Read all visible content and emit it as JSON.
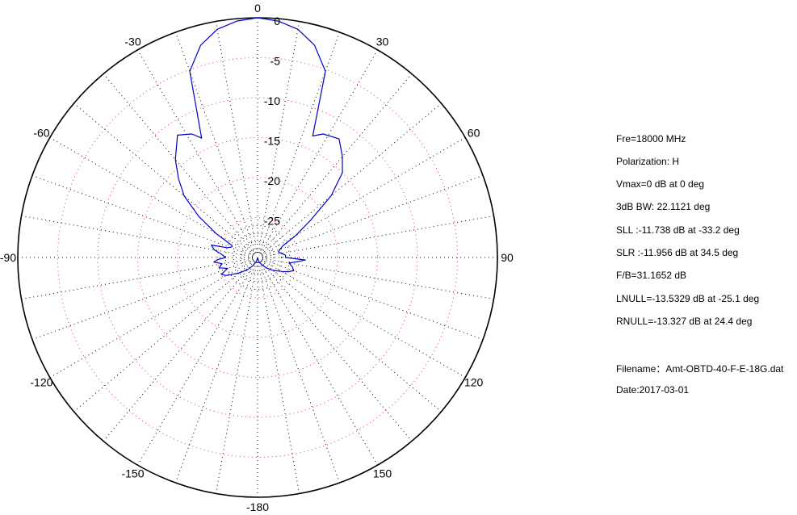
{
  "chart_data": {
    "type": "polar-line",
    "angle_labels": [
      "0",
      "30",
      "60",
      "90",
      "120",
      "150",
      "-180",
      "-150",
      "-120",
      "-90",
      "-60",
      "-30"
    ],
    "radial_ticks": [
      0,
      -5,
      -10,
      -15,
      -20,
      -25
    ],
    "radial_range_db": [
      -30,
      0
    ],
    "angle_grid_step_deg": 10,
    "grid": true,
    "series": [
      {
        "color": "#0000cc",
        "points": [
          [
            0,
            0
          ],
          [
            5,
            -0.3
          ],
          [
            10,
            -1.0
          ],
          [
            15,
            -2.5
          ],
          [
            20,
            -5.2
          ],
          [
            24.4,
            -13.3
          ],
          [
            28,
            -12.5
          ],
          [
            34.5,
            -12.0
          ],
          [
            40,
            -13.5
          ],
          [
            45,
            -15.0
          ],
          [
            50,
            -18.0
          ],
          [
            55,
            -22.0
          ],
          [
            60,
            -24.5
          ],
          [
            65,
            -26.5
          ],
          [
            70,
            -27.0
          ],
          [
            75,
            -27.3
          ],
          [
            80,
            -27.0
          ],
          [
            85,
            -26.5
          ],
          [
            90,
            -26.5
          ],
          [
            93,
            -24.0
          ],
          [
            96,
            -25.0
          ],
          [
            100,
            -26.0
          ],
          [
            105,
            -25.5
          ],
          [
            110,
            -25.2
          ],
          [
            115,
            -25.8
          ],
          [
            120,
            -26.5
          ],
          [
            130,
            -27.5
          ],
          [
            140,
            -28.3
          ],
          [
            150,
            -29.0
          ],
          [
            165,
            -29.5
          ],
          [
            180,
            -31.2
          ],
          [
            -165,
            -29.5
          ],
          [
            -150,
            -28.8
          ],
          [
            -140,
            -28.0
          ],
          [
            -130,
            -27.0
          ],
          [
            -120,
            -25.5
          ],
          [
            -115,
            -25.0
          ],
          [
            -110,
            -26.0
          ],
          [
            -105,
            -25.0
          ],
          [
            -100,
            -25.5
          ],
          [
            -96,
            -24.5
          ],
          [
            -93,
            -25.0
          ],
          [
            -90,
            -26.0
          ],
          [
            -85,
            -25.5
          ],
          [
            -80,
            -24.5
          ],
          [
            -75,
            -24.0
          ],
          [
            -72,
            -26.0
          ],
          [
            -68,
            -26.5
          ],
          [
            -65,
            -26.5
          ],
          [
            -60,
            -24.0
          ],
          [
            -55,
            -21.0
          ],
          [
            -50,
            -18.0
          ],
          [
            -45,
            -16.0
          ],
          [
            -40,
            -14.0
          ],
          [
            -33.2,
            -11.7
          ],
          [
            -28,
            -12.5
          ],
          [
            -25.1,
            -13.5
          ],
          [
            -20,
            -5.2
          ],
          [
            -15,
            -2.5
          ],
          [
            -10,
            -1.0
          ],
          [
            -5,
            -0.3
          ],
          [
            0,
            0
          ]
        ]
      }
    ]
  },
  "info": {
    "freq": "Fre=18000 MHz",
    "polarization": "Polarization: H",
    "vmax": "Vmax=0 dB at 0 deg",
    "bw3db": "3dB BW: 22.1121 deg",
    "sll": "SLL :-11.738 dB at  -33.2 deg",
    "slr": "SLR :-11.956 dB at  34.5 deg",
    "fb": "F/B=31.1652 dB",
    "lnull": "LNULL=-13.5329 dB at -25.1 deg",
    "rnull": "RNULL=-13.327 dB at 24.4 deg",
    "filename": "Filename：Amt-OBTD-40-F-E-18G.dat",
    "date": "Date:2017-03-01"
  }
}
